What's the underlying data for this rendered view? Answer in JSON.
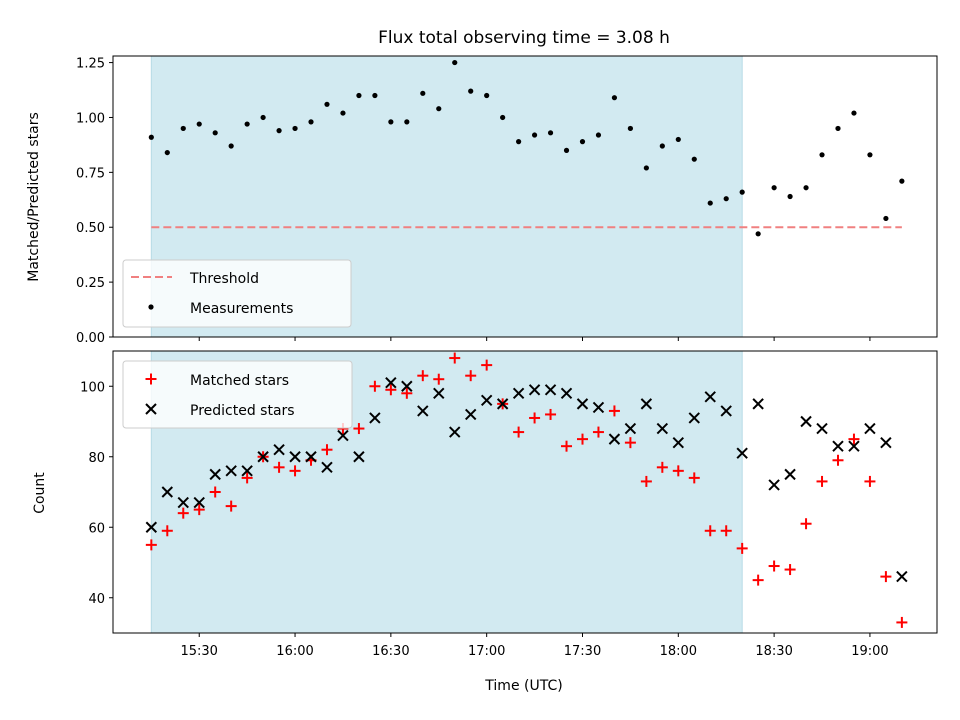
{
  "chart_data": [
    {
      "type": "scatter",
      "title": "Flux total observing time = 3.08 h",
      "ylabel": "Matched/Predicted stars",
      "ylim": [
        0,
        1.28
      ],
      "yticks": [
        "0.00",
        "0.25",
        "0.50",
        "0.75",
        "1.00",
        "1.25"
      ],
      "shaded_region": {
        "x_start": "15:15",
        "x_end": "18:20",
        "color": "#d2eaf1"
      },
      "legend_position": "lower-left",
      "series": [
        {
          "name": "Threshold",
          "style": "dashed-line",
          "color": "#f08080",
          "points": [
            [
              "15:15",
              0.5
            ],
            [
              "19:10",
              0.5
            ]
          ]
        },
        {
          "name": "Measurements",
          "style": "dot",
          "color": "#000000",
          "points": [
            [
              "15:15",
              0.91
            ],
            [
              "15:20",
              0.84
            ],
            [
              "15:25",
              0.95
            ],
            [
              "15:30",
              0.97
            ],
            [
              "15:35",
              0.93
            ],
            [
              "15:40",
              0.87
            ],
            [
              "15:45",
              0.97
            ],
            [
              "15:50",
              1.0
            ],
            [
              "15:55",
              0.94
            ],
            [
              "16:00",
              0.95
            ],
            [
              "16:05",
              0.98
            ],
            [
              "16:10",
              1.06
            ],
            [
              "16:15",
              1.02
            ],
            [
              "16:20",
              1.1
            ],
            [
              "16:25",
              1.1
            ],
            [
              "16:30",
              0.98
            ],
            [
              "16:35",
              0.98
            ],
            [
              "16:40",
              1.11
            ],
            [
              "16:45",
              1.04
            ],
            [
              "16:50",
              1.25
            ],
            [
              "16:55",
              1.12
            ],
            [
              "17:00",
              1.1
            ],
            [
              "17:05",
              1.0
            ],
            [
              "17:10",
              0.89
            ],
            [
              "17:15",
              0.92
            ],
            [
              "17:20",
              0.93
            ],
            [
              "17:25",
              0.85
            ],
            [
              "17:30",
              0.89
            ],
            [
              "17:35",
              0.92
            ],
            [
              "17:40",
              1.09
            ],
            [
              "17:45",
              0.95
            ],
            [
              "17:50",
              0.77
            ],
            [
              "17:55",
              0.87
            ],
            [
              "18:00",
              0.9
            ],
            [
              "18:05",
              0.81
            ],
            [
              "18:10",
              0.61
            ],
            [
              "18:15",
              0.63
            ],
            [
              "18:20",
              0.66
            ],
            [
              "18:25",
              0.47
            ],
            [
              "18:30",
              0.68
            ],
            [
              "18:35",
              0.64
            ],
            [
              "18:40",
              0.68
            ],
            [
              "18:45",
              0.83
            ],
            [
              "18:50",
              0.95
            ],
            [
              "18:55",
              1.02
            ],
            [
              "19:00",
              0.83
            ],
            [
              "19:05",
              0.54
            ],
            [
              "19:10",
              0.71
            ]
          ]
        }
      ]
    },
    {
      "type": "scatter",
      "xlabel": "Time (UTC)",
      "ylabel": "Count",
      "ylim": [
        30,
        110
      ],
      "yticks": [
        "40",
        "60",
        "80",
        "100"
      ],
      "xticks": [
        "15:30",
        "16:00",
        "16:30",
        "17:00",
        "17:30",
        "18:00",
        "18:30",
        "19:00"
      ],
      "x_range": [
        "15:03",
        "19:21"
      ],
      "shaded_region": {
        "x_start": "15:15",
        "x_end": "18:20",
        "color": "#d2eaf1"
      },
      "legend_position": "top-left",
      "series": [
        {
          "name": "Matched stars",
          "marker": "plus",
          "color": "#ff0000",
          "points": [
            [
              "15:15",
              55
            ],
            [
              "15:20",
              59
            ],
            [
              "15:25",
              64
            ],
            [
              "15:30",
              65
            ],
            [
              "15:35",
              70
            ],
            [
              "15:40",
              66
            ],
            [
              "15:45",
              74
            ],
            [
              "15:50",
              80
            ],
            [
              "15:55",
              77
            ],
            [
              "16:00",
              76
            ],
            [
              "16:05",
              79
            ],
            [
              "16:10",
              82
            ],
            [
              "16:15",
              88
            ],
            [
              "16:20",
              88
            ],
            [
              "16:25",
              100
            ],
            [
              "16:30",
              99
            ],
            [
              "16:35",
              98
            ],
            [
              "16:40",
              103
            ],
            [
              "16:45",
              102
            ],
            [
              "16:50",
              108
            ],
            [
              "16:55",
              103
            ],
            [
              "17:00",
              106
            ],
            [
              "17:05",
              95
            ],
            [
              "17:10",
              87
            ],
            [
              "17:15",
              91
            ],
            [
              "17:20",
              92
            ],
            [
              "17:25",
              83
            ],
            [
              "17:30",
              85
            ],
            [
              "17:35",
              87
            ],
            [
              "17:40",
              93
            ],
            [
              "17:45",
              84
            ],
            [
              "17:50",
              73
            ],
            [
              "17:55",
              77
            ],
            [
              "18:00",
              76
            ],
            [
              "18:05",
              74
            ],
            [
              "18:10",
              59
            ],
            [
              "18:15",
              59
            ],
            [
              "18:20",
              54
            ],
            [
              "18:25",
              45
            ],
            [
              "18:30",
              49
            ],
            [
              "18:35",
              48
            ],
            [
              "18:40",
              61
            ],
            [
              "18:45",
              73
            ],
            [
              "18:50",
              79
            ],
            [
              "18:55",
              85
            ],
            [
              "19:00",
              73
            ],
            [
              "19:05",
              46
            ],
            [
              "19:10",
              33
            ]
          ]
        },
        {
          "name": "Predicted stars",
          "marker": "x",
          "color": "#000000",
          "points": [
            [
              "15:15",
              60
            ],
            [
              "15:20",
              70
            ],
            [
              "15:25",
              67
            ],
            [
              "15:30",
              67
            ],
            [
              "15:35",
              75
            ],
            [
              "15:40",
              76
            ],
            [
              "15:45",
              76
            ],
            [
              "15:50",
              80
            ],
            [
              "15:55",
              82
            ],
            [
              "16:00",
              80
            ],
            [
              "16:05",
              80
            ],
            [
              "16:10",
              77
            ],
            [
              "16:15",
              86
            ],
            [
              "16:20",
              80
            ],
            [
              "16:25",
              91
            ],
            [
              "16:30",
              101
            ],
            [
              "16:35",
              100
            ],
            [
              "16:40",
              93
            ],
            [
              "16:45",
              98
            ],
            [
              "16:50",
              87
            ],
            [
              "16:55",
              92
            ],
            [
              "17:00",
              96
            ],
            [
              "17:05",
              95
            ],
            [
              "17:10",
              98
            ],
            [
              "17:15",
              99
            ],
            [
              "17:20",
              99
            ],
            [
              "17:25",
              98
            ],
            [
              "17:30",
              95
            ],
            [
              "17:35",
              94
            ],
            [
              "17:40",
              85
            ],
            [
              "17:45",
              88
            ],
            [
              "17:50",
              95
            ],
            [
              "17:55",
              88
            ],
            [
              "18:00",
              84
            ],
            [
              "18:05",
              91
            ],
            [
              "18:10",
              97
            ],
            [
              "18:15",
              93
            ],
            [
              "18:20",
              81
            ],
            [
              "18:25",
              95
            ],
            [
              "18:30",
              72
            ],
            [
              "18:35",
              75
            ],
            [
              "18:40",
              90
            ],
            [
              "18:45",
              88
            ],
            [
              "18:50",
              83
            ],
            [
              "18:55",
              83
            ],
            [
              "19:00",
              88
            ],
            [
              "19:05",
              84
            ],
            [
              "19:10",
              46
            ]
          ]
        }
      ]
    }
  ]
}
